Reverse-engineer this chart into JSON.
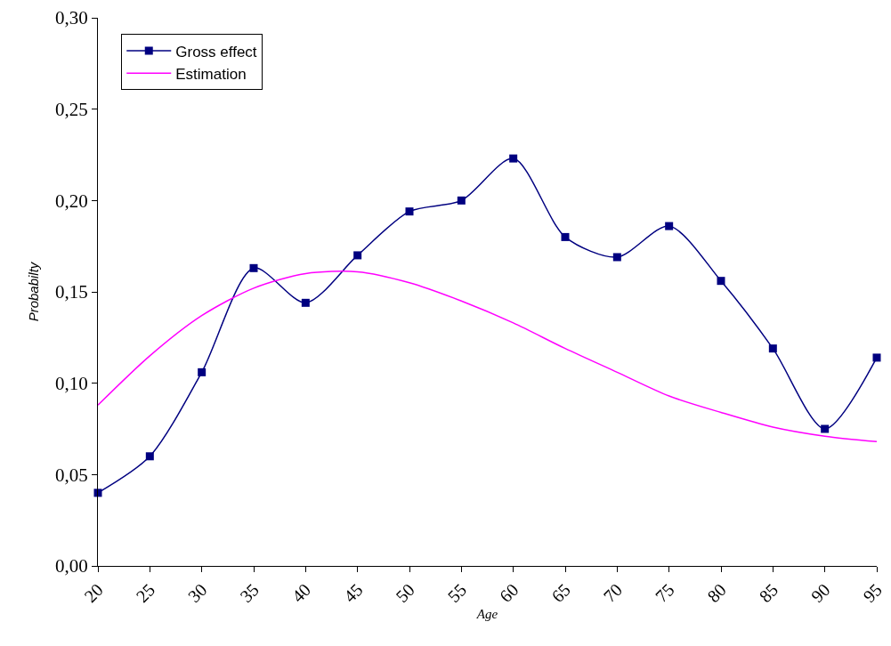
{
  "chart_data": {
    "type": "line",
    "xlabel": "Age",
    "ylabel": "Probabilty",
    "x": [
      20,
      25,
      30,
      35,
      40,
      45,
      50,
      55,
      60,
      65,
      70,
      75,
      80,
      85,
      90,
      95
    ],
    "xlim": [
      20,
      95
    ],
    "xticks": [
      20,
      25,
      30,
      35,
      40,
      45,
      50,
      55,
      60,
      65,
      70,
      75,
      80,
      85,
      90,
      95
    ],
    "ylim": [
      0,
      0.3
    ],
    "yticks": [
      {
        "value": 0,
        "label": "0,00"
      },
      {
        "value": 0.05,
        "label": "0,05"
      },
      {
        "value": 0.1,
        "label": "0,10"
      },
      {
        "value": 0.15,
        "label": "0,15"
      },
      {
        "value": 0.2,
        "label": "0,20"
      },
      {
        "value": 0.25,
        "label": "0,25"
      },
      {
        "value": 0.3,
        "label": "0,30"
      }
    ],
    "grid": false,
    "legend": "top left",
    "line_style": "solid",
    "series": [
      {
        "name": "Gross effect",
        "color": "#000080",
        "marker": "square",
        "values": [
          0.04,
          0.06,
          0.106,
          0.163,
          0.144,
          0.17,
          0.194,
          0.2,
          0.223,
          0.18,
          0.169,
          0.186,
          0.156,
          0.119,
          0.075,
          0.114
        ]
      },
      {
        "name": "Estimation",
        "color": "#ff00ff",
        "marker": "none",
        "values": [
          0.088,
          0.115,
          0.137,
          0.152,
          0.16,
          0.161,
          0.155,
          0.145,
          0.133,
          0.119,
          0.106,
          0.093,
          0.084,
          0.076,
          0.071,
          0.068
        ]
      }
    ]
  }
}
